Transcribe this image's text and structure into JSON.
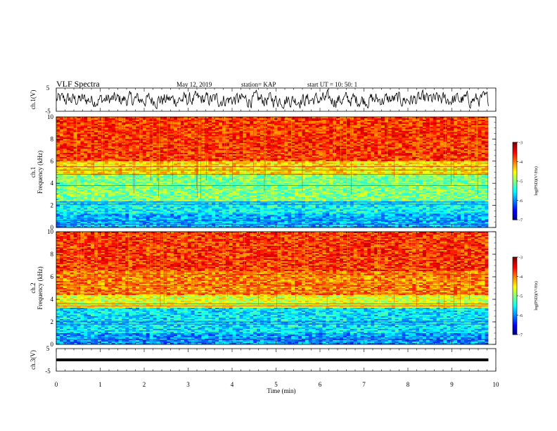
{
  "header": {
    "title": "VLF Spectra",
    "date": "May 12, 2019",
    "station": "station= KAP",
    "start": "start  UT  =   10: 50: 1"
  },
  "chart_data": [
    {
      "type": "line",
      "panel": "ch1-waveform",
      "ylabel": "ch.1(V)",
      "ylim": [
        -5,
        5
      ],
      "yticks": [
        5,
        -5
      ],
      "series": [
        {
          "values_description_free": true,
          "amplitude": 3
        }
      ]
    },
    {
      "type": "heatmap",
      "panel": "ch1-spectrogram",
      "ylabel": "ch.1\nFrequency  (kHz)",
      "ylim": [
        0,
        10
      ],
      "yticks": [
        0,
        2,
        4,
        6,
        8,
        10
      ],
      "colorbar": {
        "label": "log(PSD)(V²/Hz)",
        "range": [
          -7,
          -3
        ],
        "ticks": [
          -3,
          -4,
          -5,
          -6,
          -7
        ]
      },
      "bands": [
        {
          "from": 0,
          "to": 1.2,
          "level": -5.8
        },
        {
          "from": 1.2,
          "to": 2.4,
          "level": -5.5
        },
        {
          "from": 2.4,
          "to": 4.8,
          "level": -5.0
        },
        {
          "from": 4.8,
          "to": 6.0,
          "level": -4.4
        },
        {
          "from": 6.0,
          "to": 10,
          "level": -3.7
        }
      ],
      "lines_khz": [
        0.3,
        0.6,
        2.1,
        2.3,
        3.8,
        4.8,
        5.2,
        5.5
      ]
    },
    {
      "type": "heatmap",
      "panel": "ch2-spectrogram",
      "ylabel": "ch.2\nFrequency  (kHz)",
      "ylim": [
        0,
        10
      ],
      "yticks": [
        0,
        2,
        4,
        6,
        8,
        10
      ],
      "colorbar": {
        "label": "log(PSD)(V²/Hz)",
        "range": [
          -7,
          -3
        ],
        "ticks": [
          -3,
          -4,
          -5,
          -6,
          -7
        ]
      },
      "bands": [
        {
          "from": 0,
          "to": 1.0,
          "level": -5.9
        },
        {
          "from": 1.0,
          "to": 3.2,
          "level": -5.6
        },
        {
          "from": 3.2,
          "to": 4.4,
          "level": -4.6
        },
        {
          "from": 4.4,
          "to": 6.5,
          "level": -4.0
        },
        {
          "from": 6.5,
          "to": 10,
          "level": -3.7
        }
      ],
      "lines_khz": [
        0.4,
        1.8,
        2.0,
        3.4,
        3.6,
        4.5,
        4.8,
        5.2,
        6.2
      ]
    },
    {
      "type": "line",
      "panel": "ch3-waveform",
      "ylabel": "ch.3(V)",
      "ylim": [
        -5,
        5
      ],
      "yticks": [
        5,
        -5
      ],
      "series": [
        {
          "constant": 0
        }
      ]
    }
  ],
  "xaxis": {
    "label": "Time  (min)",
    "range": [
      0,
      10
    ],
    "data_end": 9.83,
    "ticks": [
      "0",
      "1",
      "2",
      "3",
      "4",
      "5",
      "6",
      "7",
      "8",
      "9",
      "10"
    ]
  }
}
